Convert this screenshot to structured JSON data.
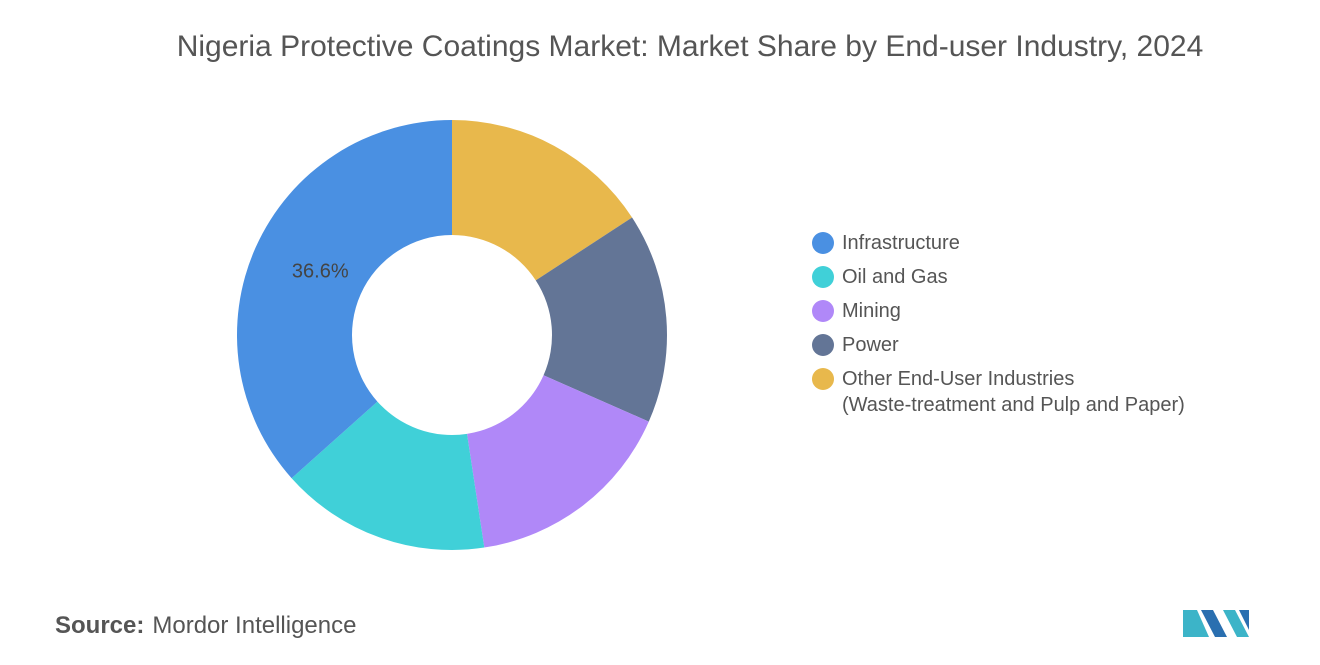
{
  "chart_data": {
    "type": "donut",
    "title": "Nigeria Protective Coatings Market: Market Share by End-user Industry, 2024",
    "categories": [
      "Infrastructure",
      "Oil and Gas",
      "Mining",
      "Power",
      "Other End-User Industries\n(Waste-treatment and Pulp and Paper)"
    ],
    "values": [
      36.6,
      15.8,
      16.0,
      15.8,
      15.8
    ],
    "value_labels": [
      "36.6%",
      null,
      null,
      null,
      null
    ],
    "colors": [
      "#4a90e2",
      "#40d0d8",
      "#b088f8",
      "#637596",
      "#e8b84c"
    ],
    "source_label": "Source:",
    "source": "Mordor Intelligence"
  }
}
